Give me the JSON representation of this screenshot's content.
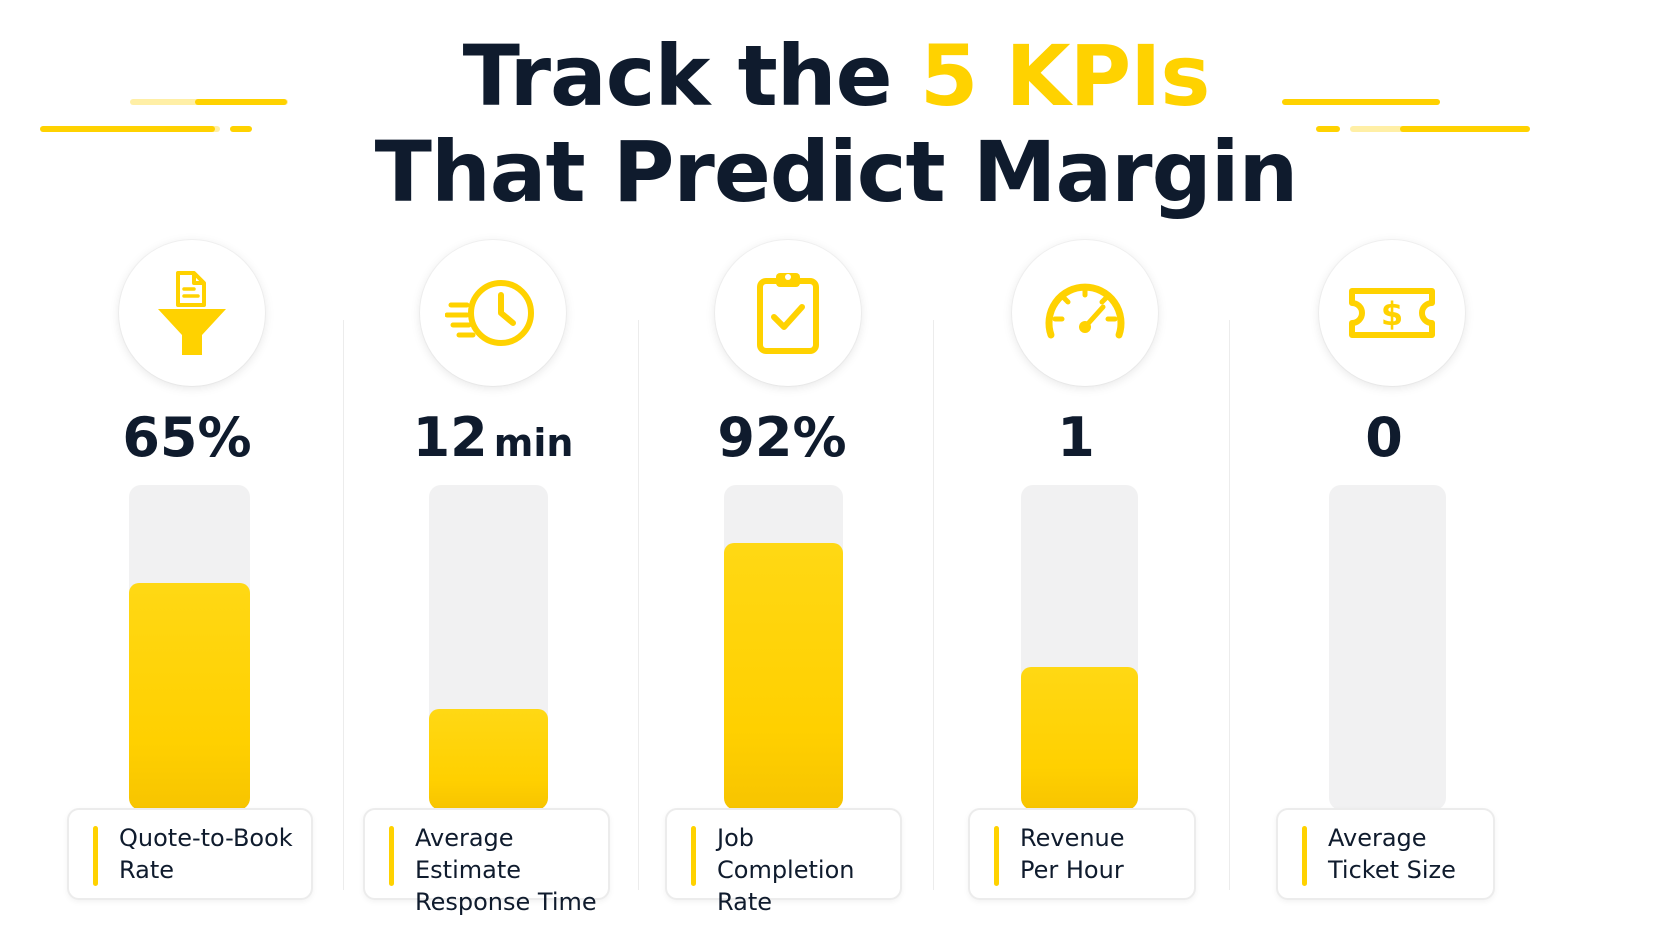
{
  "title": {
    "line1_before": "Track the ",
    "line1_accent": "5 KPIs",
    "line2": "That Predict Margin"
  },
  "colors": {
    "accent": "#FFD200",
    "text": "#0F1B2D",
    "track": "#F1F1F2"
  },
  "chart_data": {
    "type": "bar",
    "title": "Track the 5 KPIs That Predict Margin",
    "categories": [
      "Quote-to-Book Rate",
      "Average Estimate Response Time",
      "Job Completion Rate",
      "Revenue Per Hour",
      "Average Ticket Size"
    ],
    "series": [
      {
        "values": [
          65,
          12,
          92,
          1,
          0
        ]
      }
    ],
    "fill_fraction": [
      0.7,
      0.31,
      0.82,
      0.44,
      0.0
    ],
    "grid": false,
    "legend": "none"
  },
  "kpis": [
    {
      "value": "65%",
      "unit": "",
      "label": "Quote-to-Book\nRate",
      "icon": "funnel-document-icon"
    },
    {
      "value": "12",
      "unit": "min",
      "label": "Average Estimate\nResponse Time",
      "icon": "fast-clock-icon"
    },
    {
      "value": "92%",
      "unit": "",
      "label": "Job Completion\nRate",
      "icon": "clipboard-check-icon"
    },
    {
      "value": "1",
      "unit": "",
      "label": "Revenue\nPer Hour",
      "icon": "speedometer-icon"
    },
    {
      "value": "0",
      "unit": "",
      "label": "Average\nTicket Size",
      "icon": "dollar-ticket-icon"
    }
  ]
}
